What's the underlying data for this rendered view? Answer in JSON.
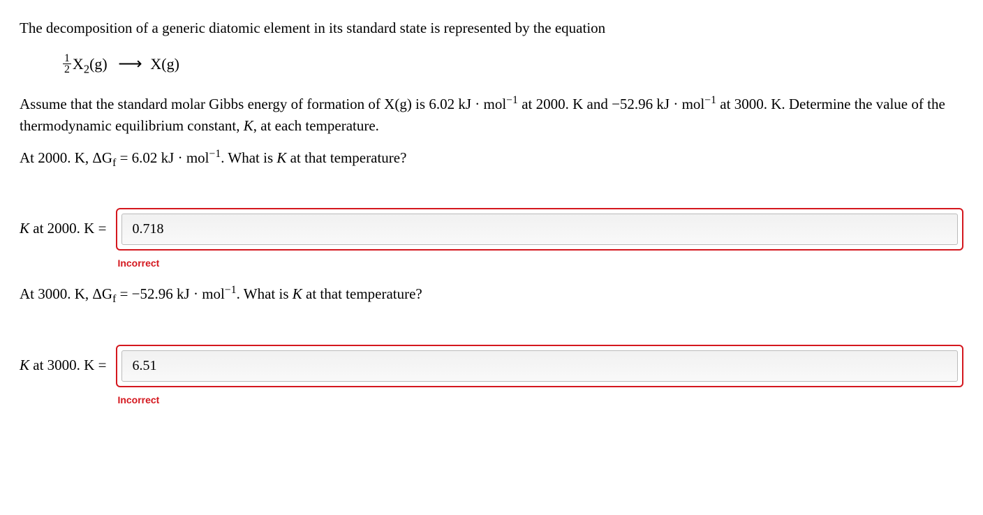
{
  "problem": {
    "intro": "The decomposition of a generic diatomic element in its standard state is represented by the equation",
    "equation": {
      "frac_num": "1",
      "frac_den": "2",
      "reactant_base": "X",
      "reactant_sub": "2",
      "reactant_state": "(g)",
      "product": "X(g)"
    },
    "context_pre": "Assume that the standard molar Gibbs energy of formation of X(g) is ",
    "val1": "6.02 kJ · mol",
    "val1_exp": "−1",
    "context_mid1": " at 2000. K and ",
    "val2": "−52.96 kJ · mol",
    "val2_exp": "−1",
    "context_mid2": " at 3000. K. Determine the value of the thermodynamic equilibrium constant, ",
    "Ksym": "K",
    "context_end": ", at each temperature."
  },
  "q1": {
    "prompt_pre": "At 2000. K, ",
    "delta": "ΔG",
    "delta_sub": "f",
    "prompt_mid": " = 6.02 kJ · mol",
    "prompt_exp": "−1",
    "prompt_post": ". What is ",
    "Ksym": "K",
    "prompt_end": " at that temperature?",
    "label_K": "K",
    "label_rest": " at 2000. K =",
    "value": "0.718",
    "feedback": "Incorrect"
  },
  "q2": {
    "prompt_pre": "At 3000. K, ",
    "delta": "ΔG",
    "delta_sub": "f",
    "prompt_mid": " = −52.96 kJ · mol",
    "prompt_exp": "−1",
    "prompt_post": ". What is ",
    "Ksym": "K",
    "prompt_end": " at that temperature?",
    "label_K": "K",
    "label_rest": " at 3000. K =",
    "value": "6.51",
    "feedback": "Incorrect"
  },
  "style": {
    "error_color": "#d4171e",
    "field_bg_top": "#f1f1f1",
    "field_bg_bottom": "#f9f9f9"
  }
}
